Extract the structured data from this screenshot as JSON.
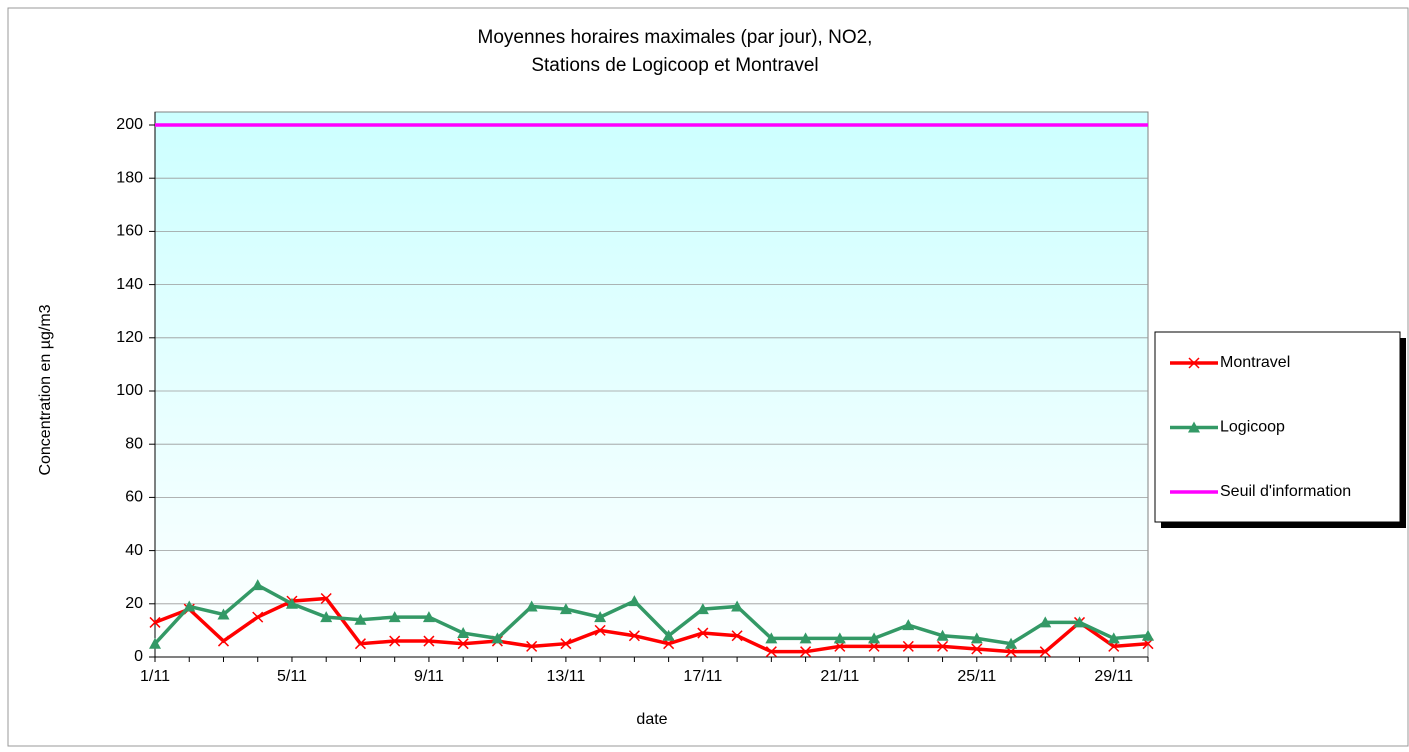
{
  "chart_data": {
    "type": "line",
    "title": [
      "Moyennes horaires maximales (par jour), NO2,",
      "Stations de Logicoop et Montravel"
    ],
    "x_label": "date",
    "y_label": "Concentration en µg/m3",
    "categories": [
      "1/11",
      null,
      null,
      null,
      "5/11",
      null,
      null,
      null,
      "9/11",
      null,
      null,
      null,
      "13/11",
      null,
      null,
      null,
      "17/11",
      null,
      null,
      null,
      "21/11",
      null,
      null,
      null,
      "25/11",
      null,
      null,
      null,
      "29/11",
      null
    ],
    "series": [
      {
        "name": "Montravel",
        "color": "#ff0000",
        "marker": "x",
        "values": [
          13,
          18,
          6,
          15,
          21,
          22,
          5,
          6,
          6,
          5,
          6,
          4,
          5,
          10,
          8,
          5,
          9,
          8,
          2,
          2,
          4,
          4,
          4,
          4,
          3,
          2,
          2,
          13,
          4,
          5
        ]
      },
      {
        "name": "Logicoop",
        "color": "#339966",
        "marker": "triangle",
        "values": [
          5,
          19,
          16,
          27,
          20,
          15,
          14,
          15,
          15,
          9,
          7,
          19,
          18,
          15,
          21,
          8,
          18,
          19,
          7,
          7,
          7,
          7,
          12,
          8,
          7,
          5,
          13,
          13,
          7,
          8
        ]
      },
      {
        "name": "Seuil d'information",
        "color": "#ff00ff",
        "marker": "none",
        "values": [
          200,
          200,
          200,
          200,
          200,
          200,
          200,
          200,
          200,
          200,
          200,
          200,
          200,
          200,
          200,
          200,
          200,
          200,
          200,
          200,
          200,
          200,
          200,
          200,
          200,
          200,
          200,
          200,
          200,
          200
        ]
      }
    ],
    "ylim": [
      0,
      200
    ],
    "yticks": [
      0,
      20,
      40,
      60,
      80,
      100,
      120,
      140,
      160,
      180,
      200
    ],
    "grid": true,
    "legend": "right"
  }
}
